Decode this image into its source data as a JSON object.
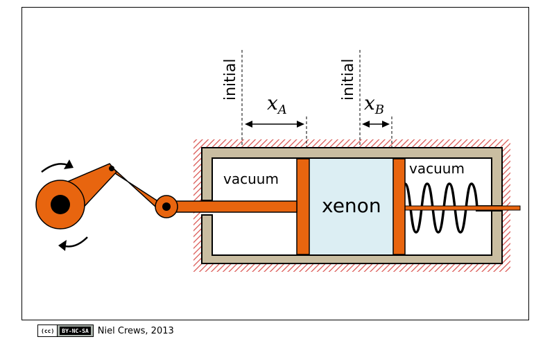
{
  "labels": {
    "initial_a": "initial",
    "initial_b": "initial",
    "x_a_main": "x",
    "x_a_sub": "A",
    "x_b_main": "x",
    "x_b_sub": "B",
    "vacuum_left": "vacuum",
    "vacuum_right": "vacuum",
    "gas": "xenon"
  },
  "license_badge": {
    "cc": "(cc)",
    "terms": "BY-NC-SA"
  },
  "credit": "Niel Crews, 2013",
  "colors": {
    "piston": "#e8650f",
    "cylinder_wall": "#c9bda1",
    "gas_fill": "#dceef3",
    "hatch": "#d9534f"
  }
}
